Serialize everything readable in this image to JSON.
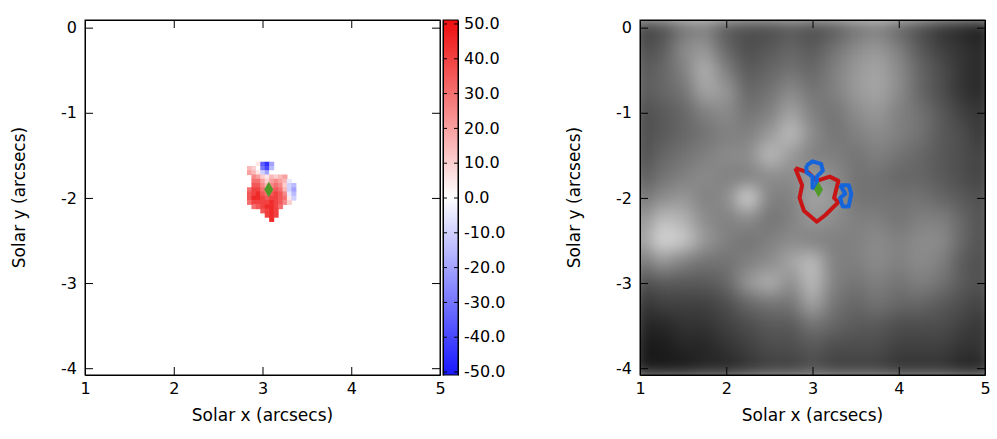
{
  "chart_data": [
    {
      "type": "heatmap",
      "xlabel": "Solar x (arcsecs)",
      "ylabel": "Solar y (arcsecs)",
      "xlim": [
        1,
        5
      ],
      "ylim": [
        -4.08,
        0.09
      ],
      "xticks": [
        1,
        2,
        3,
        4,
        5
      ],
      "yticks": [
        0,
        -1,
        -2,
        -3,
        -4
      ],
      "x": [
        2.8,
        2.85,
        2.9,
        2.95,
        3,
        3.05,
        3.1,
        3.15,
        3.2,
        3.25,
        3.3,
        3.35,
        3.4
      ],
      "y": [
        -1.6,
        -1.65,
        -1.7,
        -1.75,
        -1.8,
        -1.85,
        -1.9,
        -1.95,
        -2,
        -2.05,
        -2.1,
        -2.15,
        -2.2,
        -2.25
      ],
      "values": [
        [
          null,
          null,
          null,
          5,
          -35,
          -45,
          -20,
          null,
          null,
          null,
          null,
          null,
          null
        ],
        [
          null,
          15,
          10,
          0,
          -30,
          -40,
          -15,
          null,
          null,
          null,
          null,
          null,
          null
        ],
        [
          null,
          20,
          15,
          5,
          -10,
          -20,
          0,
          null,
          null,
          null,
          null,
          null,
          null
        ],
        [
          null,
          null,
          25,
          20,
          10,
          5,
          15,
          10,
          15,
          20,
          null,
          null,
          null
        ],
        [
          null,
          null,
          30,
          30,
          20,
          10,
          20,
          25,
          20,
          15,
          -5,
          null,
          null
        ],
        [
          null,
          null,
          35,
          35,
          25,
          15,
          25,
          30,
          25,
          10,
          -10,
          -15,
          null
        ],
        [
          null,
          30,
          40,
          40,
          30,
          20,
          30,
          35,
          30,
          15,
          -10,
          -20,
          null
        ],
        [
          null,
          35,
          40,
          45,
          35,
          30,
          35,
          40,
          35,
          25,
          -5,
          -15,
          null
        ],
        [
          null,
          35,
          45,
          45,
          40,
          35,
          40,
          40,
          35,
          30,
          5,
          -10,
          null
        ],
        [
          null,
          30,
          40,
          40,
          40,
          40,
          45,
          40,
          35,
          25,
          10,
          null,
          null
        ],
        [
          null,
          null,
          30,
          35,
          40,
          45,
          45,
          40,
          30,
          null,
          null,
          null,
          null
        ],
        [
          null,
          null,
          null,
          null,
          35,
          40,
          45,
          40,
          null,
          null,
          null,
          null,
          null
        ],
        [
          null,
          null,
          null,
          null,
          null,
          40,
          45,
          40,
          null,
          null,
          null,
          null,
          null
        ],
        [
          null,
          null,
          null,
          null,
          null,
          null,
          45,
          null,
          null,
          null,
          null,
          null,
          null
        ]
      ],
      "zlim": [
        -50,
        50
      ],
      "colorbar": {
        "range": [
          -51,
          51
        ],
        "ticks": [
          {
            "value": 50,
            "label": "50.0"
          },
          {
            "value": 40,
            "label": "40.0"
          },
          {
            "value": 30,
            "label": "30.0"
          },
          {
            "value": 20,
            "label": "20.0"
          },
          {
            "value": 10,
            "label": "10.0"
          },
          {
            "value": 0,
            "label": "0.0"
          },
          {
            "value": -10,
            "label": "-10.0"
          },
          {
            "value": -20,
            "label": "-20.0"
          },
          {
            "value": -30,
            "label": "-30.0"
          },
          {
            "value": -40,
            "label": "-40.0"
          },
          {
            "value": -50,
            "label": "-50.0"
          }
        ]
      },
      "points": [
        {
          "x": 3.07,
          "y": -1.9,
          "color": "#4f9a28",
          "marker": "diamond"
        }
      ]
    },
    {
      "type": "image",
      "xlabel": "Solar x (arcsecs)",
      "ylabel": "Solar y (arcsecs)",
      "xlim": [
        1,
        5
      ],
      "ylim": [
        -4.08,
        0.09
      ],
      "xticks": [
        1,
        2,
        3,
        4,
        5
      ],
      "yticks": [
        0,
        -1,
        -2,
        -3,
        -4
      ],
      "x": [
        1,
        1.25,
        1.5,
        1.75,
        2,
        2.25,
        2.5,
        2.75,
        3,
        3.25,
        3.5,
        3.75,
        4,
        4.25,
        4.5,
        4.75,
        5
      ],
      "y": [
        0,
        -0.25,
        -0.5,
        -0.75,
        -1,
        -1.25,
        -1.5,
        -1.75,
        -2,
        -2.25,
        -2.5,
        -2.75,
        -3,
        -3.25,
        -3.5,
        -3.75,
        -4
      ],
      "values": [
        [
          0.25,
          0.3,
          0.45,
          0.5,
          0.35,
          0.3,
          0.3,
          0.35,
          0.3,
          0.35,
          0.45,
          0.5,
          0.4,
          0.3,
          0.2,
          0.15,
          0.1
        ],
        [
          0.3,
          0.35,
          0.55,
          0.6,
          0.4,
          0.3,
          0.35,
          0.4,
          0.35,
          0.45,
          0.55,
          0.6,
          0.5,
          0.35,
          0.25,
          0.2,
          0.15
        ],
        [
          0.35,
          0.4,
          0.5,
          0.7,
          0.5,
          0.35,
          0.4,
          0.45,
          0.4,
          0.5,
          0.6,
          0.65,
          0.55,
          0.4,
          0.3,
          0.2,
          0.15
        ],
        [
          0.35,
          0.4,
          0.45,
          0.65,
          0.6,
          0.4,
          0.45,
          0.55,
          0.45,
          0.5,
          0.6,
          0.65,
          0.55,
          0.4,
          0.3,
          0.2,
          0.15
        ],
        [
          0.3,
          0.35,
          0.4,
          0.5,
          0.55,
          0.45,
          0.5,
          0.65,
          0.5,
          0.45,
          0.55,
          0.6,
          0.5,
          0.45,
          0.35,
          0.25,
          0.2
        ],
        [
          0.3,
          0.35,
          0.4,
          0.45,
          0.5,
          0.5,
          0.6,
          0.75,
          0.55,
          0.45,
          0.5,
          0.55,
          0.5,
          0.45,
          0.35,
          0.3,
          0.2
        ],
        [
          0.3,
          0.4,
          0.45,
          0.5,
          0.55,
          0.55,
          0.75,
          0.6,
          0.5,
          0.5,
          0.45,
          0.5,
          0.45,
          0.4,
          0.35,
          0.3,
          0.25
        ],
        [
          0.35,
          0.45,
          0.5,
          0.55,
          0.5,
          0.5,
          0.55,
          0.55,
          0.6,
          0.55,
          0.45,
          0.45,
          0.4,
          0.4,
          0.35,
          0.3,
          0.25
        ],
        [
          0.45,
          0.55,
          0.6,
          0.5,
          0.55,
          0.85,
          0.5,
          0.5,
          0.65,
          0.6,
          0.45,
          0.45,
          0.45,
          0.45,
          0.4,
          0.35,
          0.3
        ],
        [
          0.55,
          0.75,
          0.7,
          0.55,
          0.5,
          0.55,
          0.45,
          0.5,
          0.6,
          0.55,
          0.5,
          0.5,
          0.45,
          0.5,
          0.5,
          0.4,
          0.3
        ],
        [
          0.6,
          0.85,
          0.8,
          0.6,
          0.5,
          0.45,
          0.5,
          0.55,
          0.5,
          0.5,
          0.5,
          0.55,
          0.5,
          0.55,
          0.55,
          0.4,
          0.3
        ],
        [
          0.45,
          0.6,
          0.5,
          0.45,
          0.45,
          0.5,
          0.55,
          0.65,
          0.75,
          0.5,
          0.5,
          0.55,
          0.5,
          0.55,
          0.5,
          0.35,
          0.3
        ],
        [
          0.3,
          0.35,
          0.35,
          0.35,
          0.4,
          0.6,
          0.7,
          0.55,
          0.75,
          0.5,
          0.45,
          0.5,
          0.45,
          0.5,
          0.45,
          0.35,
          0.3
        ],
        [
          0.2,
          0.25,
          0.25,
          0.25,
          0.3,
          0.4,
          0.45,
          0.45,
          0.65,
          0.45,
          0.4,
          0.45,
          0.4,
          0.4,
          0.35,
          0.3,
          0.25
        ],
        [
          0.15,
          0.15,
          0.2,
          0.2,
          0.25,
          0.3,
          0.35,
          0.35,
          0.45,
          0.4,
          0.35,
          0.35,
          0.3,
          0.3,
          0.3,
          0.25,
          0.2
        ],
        [
          0.1,
          0.1,
          0.15,
          0.15,
          0.2,
          0.25,
          0.3,
          0.3,
          0.35,
          0.3,
          0.3,
          0.3,
          0.25,
          0.25,
          0.25,
          0.2,
          0.2
        ],
        [
          0.1,
          0.1,
          0.1,
          0.15,
          0.15,
          0.2,
          0.25,
          0.25,
          0.3,
          0.25,
          0.25,
          0.25,
          0.2,
          0.2,
          0.2,
          0.15,
          0.15
        ]
      ],
      "zlim": [
        0,
        1
      ],
      "contours": [
        {
          "color": "#c81414",
          "x": [
            2.8,
            2.95,
            3.05,
            3.2,
            3.3,
            3.25,
            3.3,
            3.15,
            3.05,
            2.9,
            2.85,
            2.88,
            2.8
          ],
          "y": [
            -1.65,
            -1.7,
            -1.8,
            -1.75,
            -1.8,
            -2,
            -2.05,
            -2.2,
            -2.28,
            -2.15,
            -2,
            -1.85,
            -1.65
          ]
        },
        {
          "color": "#1464dc",
          "x": [
            2.93,
            3,
            3.1,
            3.12,
            3.05,
            3.05,
            3,
            3,
            2.93,
            2.93
          ],
          "y": [
            -1.62,
            -1.57,
            -1.6,
            -1.68,
            -1.75,
            -1.88,
            -1.88,
            -1.75,
            -1.7,
            -1.62
          ]
        },
        {
          "color": "#1464dc",
          "x": [
            3.32,
            3.42,
            3.45,
            3.42,
            3.35,
            3.32,
            3.38,
            3.32
          ],
          "y": [
            -1.85,
            -1.85,
            -1.95,
            -2.1,
            -2.1,
            -2,
            -1.95,
            -1.85
          ]
        }
      ],
      "points": [
        {
          "x": 3.07,
          "y": -1.9,
          "color": "#4f9a28",
          "marker": "diamond"
        }
      ]
    }
  ]
}
